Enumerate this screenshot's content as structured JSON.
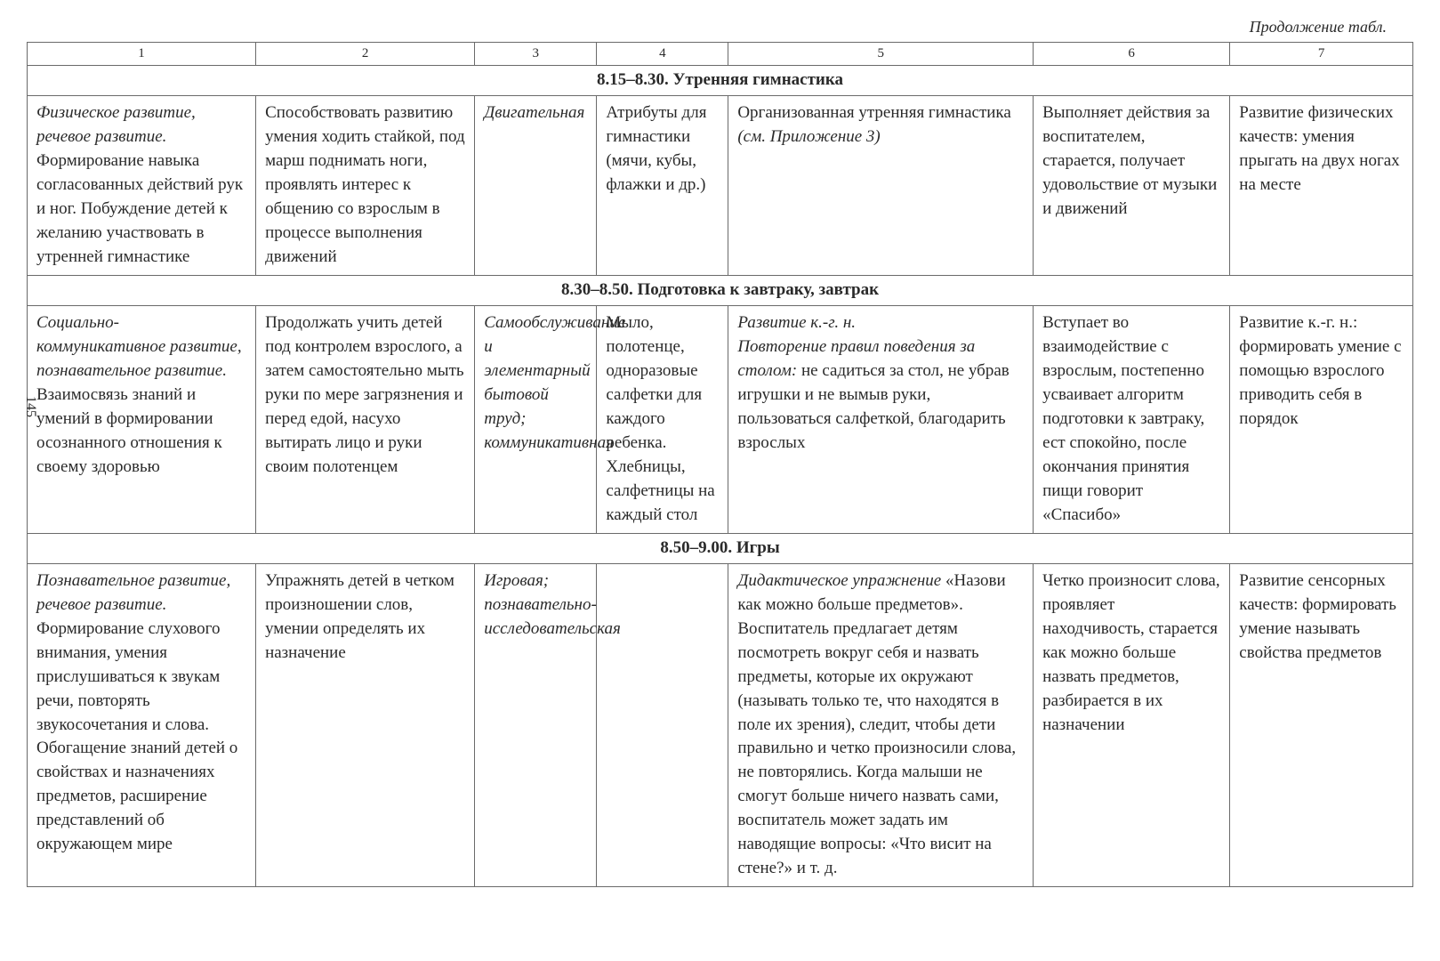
{
  "continuation": "Продолжение табл.",
  "page_number": "145",
  "columns": {
    "c1": "1",
    "c2": "2",
    "c3": "3",
    "c4": "4",
    "c5": "5",
    "c6": "6",
    "c7": "7"
  },
  "sections": {
    "s1": {
      "title": "8.15–8.30. Утренняя гимнастика",
      "row": {
        "c1_italic": "Физическое развитие, речевое развитие.",
        "c1_rest": " Формирование навыка согласованных действий рук и ног. Побуждение детей к желанию участвовать в утренней гимнастике",
        "c2": "Способствовать развитию умения ходить стайкой, под марш поднимать ноги, проявлять интерес к общению со взрослым в процессе выполнения движений",
        "c3_italic": "Двигательная",
        "c4": "Атрибуты для гимнастики (мячи, кубы, флажки и др.)",
        "c5_start": "Организованная утренняя гимнастика ",
        "c5_italic": "(см. Приложение 3)",
        "c6": "Выполняет действия за воспитателем, старается, получает удовольствие от музыки и движений",
        "c7": "Развитие физических качеств: умения прыгать на двух ногах на месте"
      }
    },
    "s2": {
      "title": "8.30–8.50. Подготовка к завтраку, завтрак",
      "row": {
        "c1_italic": "Социально-коммуникативное развитие, познавательное развитие.",
        "c1_rest": " Взаимосвязь знаний и умений в формировании осознанного отношения к своему здоровью",
        "c2": "Продолжать учить детей под контролем взрослого, а затем самостоятельно мыть руки по мере загрязнения и перед едой, насухо вытирать лицо и руки своим полотенцем",
        "c3_italic": "Самообслуживание и элементарный бытовой труд; коммуникативная",
        "c4": "Мыло, полотенце, одноразовые салфетки для каждого ребенка. Хлебницы, салфетницы на каждый стол",
        "c5_italic1": "Развитие к.-г. н.",
        "c5_italic2": "Повторение правил поведения за столом:",
        "c5_rest": " не садиться за стол, не убрав игрушки и не вымыв руки, пользоваться салфеткой, благодарить взрослых",
        "c6": "Вступает во взаимодействие с взрослым, постепенно усваивает алгоритм подготовки к завтраку, ест спокойно, после окончания принятия пищи говорит «Спасибо»",
        "c7": "Развитие к.-г. н.: формировать умение с помощью взрослого приводить себя в порядок"
      }
    },
    "s3": {
      "title": "8.50–9.00. Игры",
      "row": {
        "c1_italic": "Познавательное развитие, речевое развитие.",
        "c1_rest": " Формирование слухового внимания, умения прислушиваться к звукам речи, повторять звукосочетания и слова. Обогащение знаний детей о свойствах и назначениях предметов, расширение представлений об окружающем мире",
        "c2": "Упражнять детей в четком произношении слов, умении определять их назначение",
        "c3_italic": "Игровая; познавательно-исследовательская",
        "c4": "",
        "c5_italic1": "Дидактическое упражнение",
        "c5_rest": " «Назови как можно больше предметов».\nВоспитатель предлагает детям посмотреть вокруг себя и назвать предметы, которые их окружают (называть только те, что находятся в поле их зрения), следит, чтобы дети правильно и четко произносили слова, не повторялись. Когда малыши не смогут больше ничего назвать сами, воспитатель может задать им наводящие вопросы: «Что висит на стене?» и т. д.",
        "c6": "Четко произносит слова, проявляет находчивость, старается как можно больше назвать предметов, разбирается в их назначении",
        "c7": "Развитие сенсорных качеств: формировать умение называть свойства предметов"
      }
    }
  }
}
